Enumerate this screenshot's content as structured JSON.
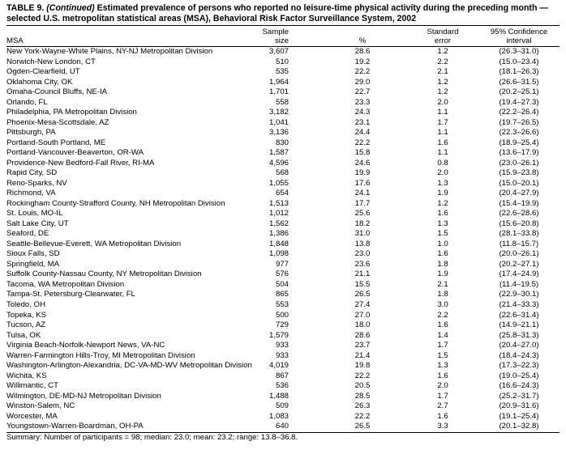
{
  "title": {
    "label": "TABLE 9.",
    "continued": "(Continued)",
    "text": "Estimated prevalence of persons who reported no leisure-time physical activity during the preceding month — selected U.S. metropolitan statistical areas (MSA), Behavioral Risk Factor Surveillance System, 2002"
  },
  "table": {
    "header": [
      [
        "MSA"
      ],
      [
        "Sample",
        "size"
      ],
      [
        "%"
      ],
      [
        "Standard",
        "error"
      ],
      [
        "95% Confidence",
        "interval"
      ]
    ],
    "rows": [
      [
        "New York-Wayne-White Plains, NY-NJ Metropolitan Division",
        "3,607",
        "28.6",
        "1.2",
        "(26.3–31.0)"
      ],
      [
        "Norwich-New London, CT",
        "510",
        "19.2",
        "2.2",
        "(15.0–23.4)"
      ],
      [
        "Ogden-Clearfield, UT",
        "535",
        "22.2",
        "2.1",
        "(18.1–26.3)"
      ],
      [
        "Oklahoma City, OK",
        "1,964",
        "29.0",
        "1.2",
        "(26.6–31.5)"
      ],
      [
        "Omaha-Council Bluffs, NE-IA",
        "1,701",
        "22.7",
        "1.2",
        "(20.2–25.1)"
      ],
      [
        "Orlando, FL",
        "558",
        "23.3",
        "2.0",
        "(19.4–27.3)"
      ],
      [
        "Philadelphia, PA Metropolitan Division",
        "3,182",
        "24.3",
        "1.1",
        "(22.2–26.4)"
      ],
      [
        "Phoenix-Mesa-Scottsdale, AZ",
        "1,041",
        "23.1",
        "1.7",
        "(19.7–26.5)"
      ],
      [
        "Pittsburgh, PA",
        "3,136",
        "24.4",
        "1.1",
        "(22.3–26.6)"
      ],
      [
        "Portland-South Portland, ME",
        "830",
        "22.2",
        "1.6",
        "(18.9–25.4)"
      ],
      [
        "Portland-Vancouver-Beaverton, OR-WA",
        "1,587",
        "15.8",
        "1.1",
        "(13.6–17.9)"
      ],
      [
        "Providence-New Bedford-Fall River, RI-MA",
        "4,596",
        "24.6",
        "0.8",
        "(23.0–26.1)"
      ],
      [
        "Rapid City, SD",
        "568",
        "19.9",
        "2.0",
        "(15.9–23.8)"
      ],
      [
        "Reno-Sparks, NV",
        "1,055",
        "17.6",
        "1.3",
        "(15.0–20.1)"
      ],
      [
        "Richmond, VA",
        "654",
        "24.1",
        "1.9",
        "(20.4–27.9)"
      ],
      [
        "Rockingham County-Strafford County, NH Metropolitan Division",
        "1,513",
        "17.7",
        "1.2",
        "(15.4–19.9)"
      ],
      [
        "St. Louis, MO-IL",
        "1,012",
        "25.6",
        "1.6",
        "(22.6–28.6)"
      ],
      [
        "Salt Lake City, UT",
        "1,562",
        "18.2",
        "1.3",
        "(15.6–20.8)"
      ],
      [
        "Seaford, DE",
        "1,386",
        "31.0",
        "1.5",
        "(28.1–33.8)"
      ],
      [
        "Seattle-Bellevue-Everett, WA Metropolitan Division",
        "1,848",
        "13.8",
        "1.0",
        "(11.8–15.7)"
      ],
      [
        "Sioux Falls, SD",
        "1,098",
        "23.0",
        "1.6",
        "(20.0–26.1)"
      ],
      [
        "Springfield, MA",
        "977",
        "23.6",
        "1.8",
        "(20.2–27.1)"
      ],
      [
        "Suffolk County-Nassau County, NY Metropolitan Division",
        "576",
        "21.1",
        "1.9",
        "(17.4–24.9)"
      ],
      [
        "Tacoma, WA Metropolitan Division",
        "504",
        "15.5",
        "2.1",
        "(11.4–19.5)"
      ],
      [
        "Tampa-St. Petersburg-Clearwater, FL",
        "865",
        "26.5",
        "1.8",
        "(22.9–30.1)"
      ],
      [
        "Toledo, OH",
        "553",
        "27.4",
        "3.0",
        "(21.4–33.3)"
      ],
      [
        "Topeka, KS",
        "500",
        "27.0",
        "2.2",
        "(22.6–31.4)"
      ],
      [
        "Tucson, AZ",
        "729",
        "18.0",
        "1.6",
        "(14.9–21.1)"
      ],
      [
        "Tulsa, OK",
        "1,579",
        "28.6",
        "1.4",
        "(25.8–31.3)"
      ],
      [
        "Virginia Beach-Norfolk-Newport News, VA-NC",
        "933",
        "23.7",
        "1.7",
        "(20.4–27.0)"
      ],
      [
        "Warren-Farmington Hills-Troy, MI Metropolitan Division",
        "933",
        "21.4",
        "1.5",
        "(18.4–24.3)"
      ],
      [
        "Washington-Arlington-Alexandria, DC-VA-MD-WV Metropolitan Division",
        "4,019",
        "19.8",
        "1.3",
        "(17.3–22.3)"
      ],
      [
        "Wichita, KS",
        "867",
        "22.2",
        "1.6",
        "(19.0–25.4)"
      ],
      [
        "Willimantic, CT",
        "536",
        "20.5",
        "2.0",
        "(16.6–24.3)"
      ],
      [
        "Wilmington, DE-MD-NJ Metropolitan Division",
        "1,488",
        "28.5",
        "1.7",
        "(25.2–31.7)"
      ],
      [
        "Winston-Salem, NC",
        "509",
        "26.3",
        "2.7",
        "(20.9–31.6)"
      ],
      [
        "Worcester, MA",
        "1,083",
        "22.2",
        "1.6",
        "(19.1–25.4)"
      ],
      [
        "Youngstown-Warren-Boardman, OH-PA",
        "640",
        "26.5",
        "3.3",
        "(20.1–32.8)"
      ]
    ]
  },
  "summary": "Summary: Number of participants = 98; median: 23.0; mean: 23.2; range: 13.8–36.8."
}
